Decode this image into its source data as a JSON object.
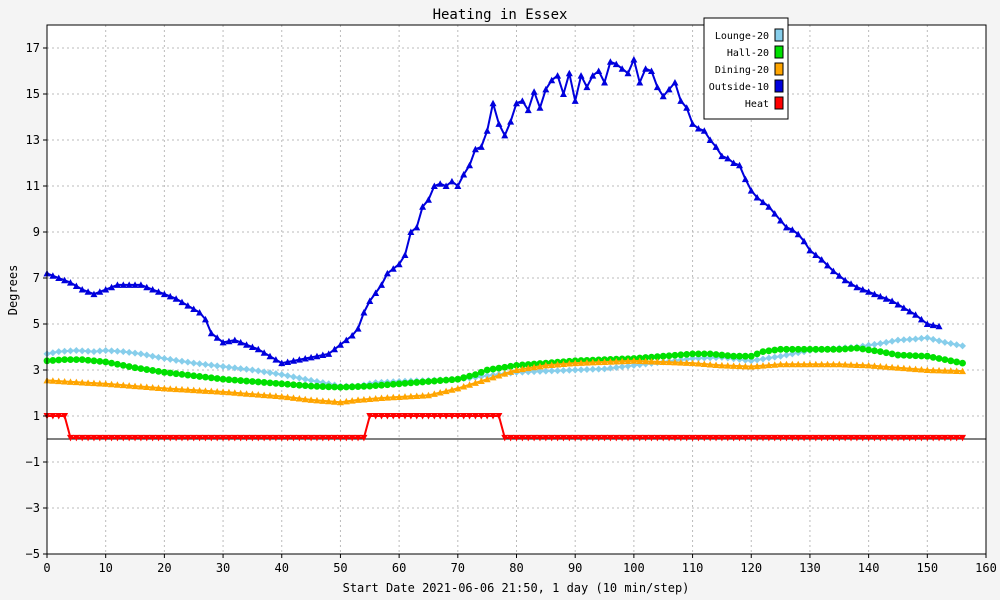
{
  "chart_data": {
    "type": "line",
    "title": "Heating in Essex",
    "xlabel": "Start Date 2021-06-06 21:50, 1 day (10 min/step)",
    "ylabel": "Degrees",
    "xlim": [
      0,
      160
    ],
    "ylim": [
      -5,
      18
    ],
    "x_ticks": [
      0,
      10,
      20,
      30,
      40,
      50,
      60,
      70,
      80,
      90,
      100,
      110,
      120,
      130,
      140,
      150,
      160
    ],
    "y_ticks": [
      -5,
      -3,
      -1,
      1,
      3,
      5,
      7,
      9,
      11,
      13,
      15,
      17
    ],
    "x_tick_labels": [
      "0",
      "10",
      "20",
      "30",
      "40",
      "50",
      "60",
      "70",
      "80",
      "90",
      "100",
      "110",
      "120",
      "130",
      "140",
      "150",
      "160"
    ],
    "y_tick_labels": [
      "−5",
      "−3",
      "−1",
      "1",
      "3",
      "5",
      "7",
      "9",
      "11",
      "13",
      "15",
      "17"
    ],
    "grid": true,
    "legend_position": "top-right",
    "background_color": "#f4f4f4",
    "plot_background": "#ffffff",
    "series": [
      {
        "name": "Lounge-20",
        "color": "#87ceeb",
        "marker": "diamond",
        "points": [
          [
            0,
            3.7
          ],
          [
            2,
            3.8
          ],
          [
            5,
            3.85
          ],
          [
            8,
            3.8
          ],
          [
            10,
            3.85
          ],
          [
            13,
            3.8
          ],
          [
            16,
            3.7
          ],
          [
            20,
            3.5
          ],
          [
            25,
            3.3
          ],
          [
            30,
            3.15
          ],
          [
            35,
            3.0
          ],
          [
            40,
            2.8
          ],
          [
            45,
            2.55
          ],
          [
            48,
            2.4
          ],
          [
            50,
            2.3
          ],
          [
            53,
            2.3
          ],
          [
            56,
            2.45
          ],
          [
            60,
            2.5
          ],
          [
            65,
            2.55
          ],
          [
            70,
            2.6
          ],
          [
            72,
            2.65
          ],
          [
            75,
            2.75
          ],
          [
            80,
            2.9
          ],
          [
            85,
            2.95
          ],
          [
            90,
            3.0
          ],
          [
            95,
            3.05
          ],
          [
            100,
            3.2
          ],
          [
            105,
            3.35
          ],
          [
            110,
            3.5
          ],
          [
            115,
            3.55
          ],
          [
            120,
            3.4
          ],
          [
            125,
            3.6
          ],
          [
            130,
            3.85
          ],
          [
            135,
            3.95
          ],
          [
            138,
            4.0
          ],
          [
            142,
            4.15
          ],
          [
            145,
            4.3
          ],
          [
            148,
            4.35
          ],
          [
            150,
            4.4
          ],
          [
            153,
            4.2
          ],
          [
            156,
            4.05
          ]
        ]
      },
      {
        "name": "Hall-20",
        "color": "#00e000",
        "marker": "circle",
        "points": [
          [
            0,
            3.4
          ],
          [
            3,
            3.45
          ],
          [
            6,
            3.45
          ],
          [
            10,
            3.35
          ],
          [
            15,
            3.1
          ],
          [
            20,
            2.9
          ],
          [
            25,
            2.75
          ],
          [
            30,
            2.6
          ],
          [
            35,
            2.5
          ],
          [
            40,
            2.4
          ],
          [
            45,
            2.3
          ],
          [
            50,
            2.25
          ],
          [
            55,
            2.3
          ],
          [
            60,
            2.4
          ],
          [
            65,
            2.5
          ],
          [
            70,
            2.6
          ],
          [
            73,
            2.8
          ],
          [
            75,
            3.0
          ],
          [
            80,
            3.2
          ],
          [
            85,
            3.3
          ],
          [
            90,
            3.4
          ],
          [
            95,
            3.45
          ],
          [
            100,
            3.5
          ],
          [
            105,
            3.6
          ],
          [
            110,
            3.7
          ],
          [
            113,
            3.7
          ],
          [
            117,
            3.6
          ],
          [
            120,
            3.6
          ],
          [
            122,
            3.8
          ],
          [
            125,
            3.9
          ],
          [
            130,
            3.9
          ],
          [
            135,
            3.9
          ],
          [
            138,
            3.95
          ],
          [
            142,
            3.8
          ],
          [
            145,
            3.65
          ],
          [
            150,
            3.6
          ],
          [
            153,
            3.45
          ],
          [
            156,
            3.3
          ]
        ]
      },
      {
        "name": "Dining-20",
        "color": "#ffa500",
        "marker": "triangle",
        "points": [
          [
            0,
            2.55
          ],
          [
            3,
            2.5
          ],
          [
            10,
            2.4
          ],
          [
            20,
            2.2
          ],
          [
            30,
            2.05
          ],
          [
            40,
            1.85
          ],
          [
            45,
            1.7
          ],
          [
            50,
            1.6
          ],
          [
            53,
            1.7
          ],
          [
            58,
            1.8
          ],
          [
            65,
            1.9
          ],
          [
            70,
            2.2
          ],
          [
            75,
            2.6
          ],
          [
            80,
            3.0
          ],
          [
            85,
            3.2
          ],
          [
            90,
            3.3
          ],
          [
            95,
            3.35
          ],
          [
            100,
            3.4
          ],
          [
            105,
            3.35
          ],
          [
            110,
            3.3
          ],
          [
            115,
            3.2
          ],
          [
            120,
            3.15
          ],
          [
            125,
            3.25
          ],
          [
            130,
            3.25
          ],
          [
            135,
            3.25
          ],
          [
            140,
            3.2
          ],
          [
            145,
            3.1
          ],
          [
            150,
            3.0
          ],
          [
            156,
            2.95
          ]
        ]
      },
      {
        "name": "Outside-10",
        "color": "#0000dd",
        "marker": "triangle",
        "points": [
          [
            0,
            7.2
          ],
          [
            2,
            7.0
          ],
          [
            4,
            6.8
          ],
          [
            6,
            6.5
          ],
          [
            8,
            6.3
          ],
          [
            10,
            6.5
          ],
          [
            12,
            6.7
          ],
          [
            14,
            6.7
          ],
          [
            16,
            6.7
          ],
          [
            18,
            6.5
          ],
          [
            20,
            6.3
          ],
          [
            22,
            6.1
          ],
          [
            24,
            5.8
          ],
          [
            26,
            5.5
          ],
          [
            27,
            5.2
          ],
          [
            28,
            4.6
          ],
          [
            29,
            4.4
          ],
          [
            30,
            4.2
          ],
          [
            32,
            4.3
          ],
          [
            34,
            4.1
          ],
          [
            36,
            3.9
          ],
          [
            38,
            3.6
          ],
          [
            40,
            3.3
          ],
          [
            42,
            3.4
          ],
          [
            44,
            3.5
          ],
          [
            46,
            3.6
          ],
          [
            48,
            3.7
          ],
          [
            50,
            4.1
          ],
          [
            52,
            4.5
          ],
          [
            53,
            4.8
          ],
          [
            54,
            5.5
          ],
          [
            55,
            6.0
          ],
          [
            57,
            6.7
          ],
          [
            58,
            7.2
          ],
          [
            60,
            7.6
          ],
          [
            61,
            8.0
          ],
          [
            62,
            9.0
          ],
          [
            63,
            9.2
          ],
          [
            64,
            10.1
          ],
          [
            65,
            10.4
          ],
          [
            66,
            11.0
          ],
          [
            67,
            11.1
          ],
          [
            68,
            11.0
          ],
          [
            69,
            11.2
          ],
          [
            70,
            11.0
          ],
          [
            71,
            11.5
          ],
          [
            72,
            11.9
          ],
          [
            73,
            12.6
          ],
          [
            74,
            12.7
          ],
          [
            75,
            13.4
          ],
          [
            76,
            14.6
          ],
          [
            77,
            13.7
          ],
          [
            78,
            13.2
          ],
          [
            79,
            13.8
          ],
          [
            80,
            14.6
          ],
          [
            81,
            14.7
          ],
          [
            82,
            14.3
          ],
          [
            83,
            15.1
          ],
          [
            84,
            14.4
          ],
          [
            85,
            15.2
          ],
          [
            86,
            15.6
          ],
          [
            87,
            15.8
          ],
          [
            88,
            15.0
          ],
          [
            89,
            15.9
          ],
          [
            90,
            14.7
          ],
          [
            91,
            15.8
          ],
          [
            92,
            15.3
          ],
          [
            93,
            15.8
          ],
          [
            94,
            16.0
          ],
          [
            95,
            15.5
          ],
          [
            96,
            16.4
          ],
          [
            97,
            16.3
          ],
          [
            98,
            16.1
          ],
          [
            99,
            15.9
          ],
          [
            100,
            16.5
          ],
          [
            101,
            15.5
          ],
          [
            102,
            16.1
          ],
          [
            103,
            16.0
          ],
          [
            104,
            15.3
          ],
          [
            105,
            14.9
          ],
          [
            106,
            15.2
          ],
          [
            107,
            15.5
          ],
          [
            108,
            14.7
          ],
          [
            109,
            14.4
          ],
          [
            110,
            13.7
          ],
          [
            111,
            13.5
          ],
          [
            112,
            13.4
          ],
          [
            113,
            13.0
          ],
          [
            114,
            12.7
          ],
          [
            115,
            12.3
          ],
          [
            116,
            12.2
          ],
          [
            117,
            12.0
          ],
          [
            118,
            11.9
          ],
          [
            119,
            11.3
          ],
          [
            120,
            10.8
          ],
          [
            121,
            10.5
          ],
          [
            122,
            10.3
          ],
          [
            123,
            10.1
          ],
          [
            124,
            9.8
          ],
          [
            125,
            9.5
          ],
          [
            126,
            9.2
          ],
          [
            127,
            9.1
          ],
          [
            128,
            8.9
          ],
          [
            129,
            8.6
          ],
          [
            130,
            8.2
          ],
          [
            132,
            7.8
          ],
          [
            134,
            7.3
          ],
          [
            136,
            6.9
          ],
          [
            138,
            6.6
          ],
          [
            140,
            6.4
          ],
          [
            142,
            6.2
          ],
          [
            144,
            6.0
          ],
          [
            146,
            5.7
          ],
          [
            148,
            5.4
          ],
          [
            150,
            5.0
          ],
          [
            152,
            4.9
          ]
        ]
      },
      {
        "name": "Heat",
        "color": "#ff0000",
        "marker": "triangle-down",
        "points": [
          [
            0,
            1.0
          ],
          [
            3,
            1.0
          ],
          [
            4,
            0.05
          ],
          [
            54,
            0.05
          ],
          [
            55,
            1.0
          ],
          [
            77,
            1.0
          ],
          [
            78,
            0.05
          ],
          [
            156,
            0.05
          ]
        ]
      }
    ]
  }
}
